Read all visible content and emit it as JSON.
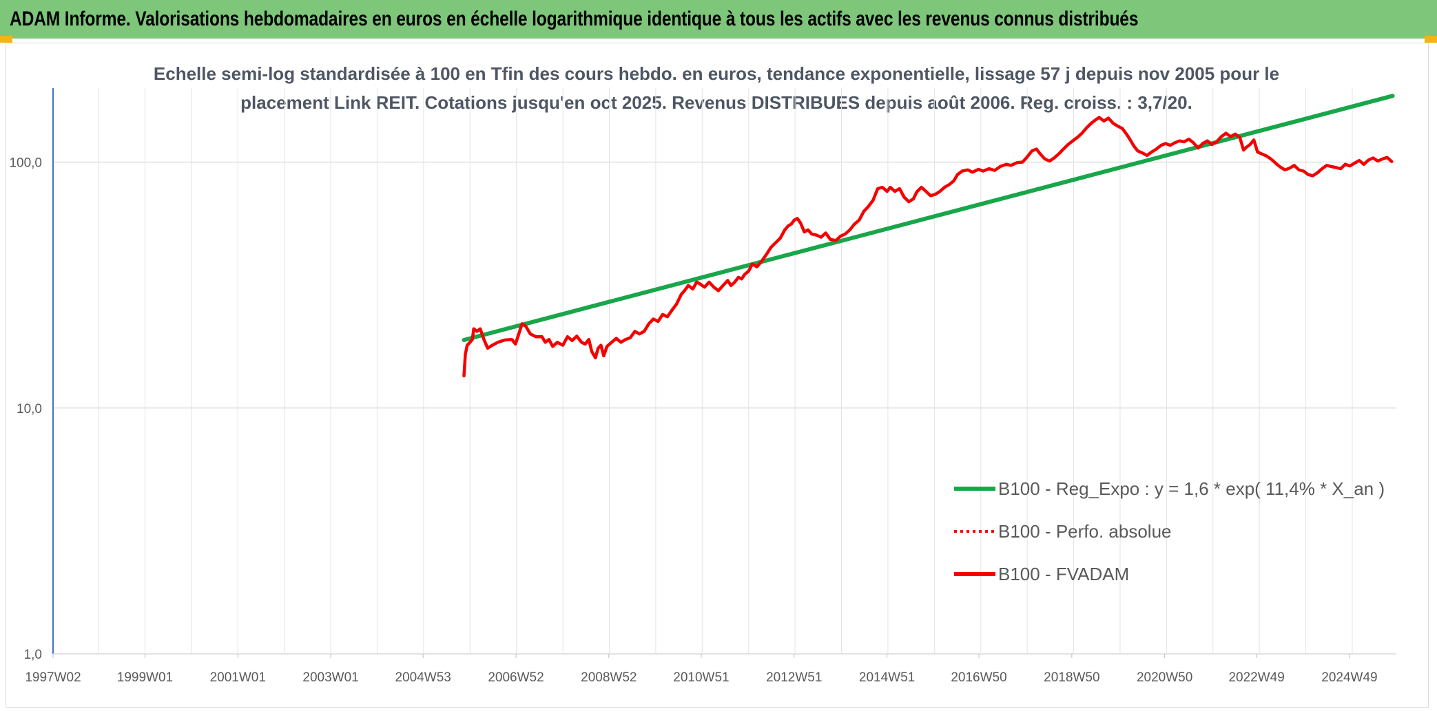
{
  "header": {
    "title": "ADAM Informe. Valorisations hebdomadaires en euros en échelle logarithmique identique à tous les actifs avec les revenus connus distribués"
  },
  "colors": {
    "header_bg": "#7dc67a",
    "corner_accent": "#f3b415",
    "trend": "#19a64a",
    "series": "#f50000",
    "grid": "#d9d9d9",
    "axis": "#4472c4"
  },
  "chart_data": {
    "type": "line",
    "title_lines": [
      "Echelle semi-log standardisée à 100 en Tfin des cours hebdo. en euros, tendance exponentielle, lissage 57 j depuis nov 2005 pour le",
      "placement Link REIT. Cotations jusqu'en oct 2025. Revenus DISTRIBUES depuis août 2006. Reg. croiss. : 3,7/20."
    ],
    "y_scale": "log",
    "ylim": [
      1,
      200
    ],
    "y_ticks": [
      {
        "value": 1,
        "label": "1,0"
      },
      {
        "value": 10,
        "label": "10,0"
      },
      {
        "value": 100,
        "label": "100,0"
      }
    ],
    "xlim": [
      1997.02,
      2025.95
    ],
    "x_ticks": [
      {
        "value": 1997.02,
        "label": "1997W02"
      },
      {
        "value": 1999.0,
        "label": "1999W01"
      },
      {
        "value": 2001.0,
        "label": "2001W01"
      },
      {
        "value": 2003.0,
        "label": "2003W01"
      },
      {
        "value": 2004.99,
        "label": "2004W53"
      },
      {
        "value": 2006.99,
        "label": "2006W52"
      },
      {
        "value": 2008.99,
        "label": "2008W52"
      },
      {
        "value": 2010.98,
        "label": "2010W51"
      },
      {
        "value": 2012.98,
        "label": "2012W51"
      },
      {
        "value": 2014.98,
        "label": "2014W51"
      },
      {
        "value": 2016.96,
        "label": "2016W50"
      },
      {
        "value": 2018.96,
        "label": "2018W50"
      },
      {
        "value": 2020.96,
        "label": "2020W50"
      },
      {
        "value": 2022.94,
        "label": "2022W49"
      },
      {
        "value": 2024.94,
        "label": "2024W49"
      }
    ],
    "grid": true,
    "legend_position": "bottom-right",
    "series": [
      {
        "name": "B100 - Reg_Expo : y = 1,6 * exp( 11,4% *  X_an )",
        "style": "solid",
        "color": "#19a64a",
        "points": [
          [
            2005.87,
            18.9
          ],
          [
            2025.87,
            186
          ]
        ]
      },
      {
        "name": "B100 - Perfo. absolue",
        "style": "dotted",
        "color": "#f50000",
        "points": []
      },
      {
        "name": "B100 - FVADAM",
        "style": "solid",
        "color": "#f50000",
        "points": [
          [
            2005.87,
            13.5
          ],
          [
            2005.9,
            16.5
          ],
          [
            2005.94,
            18.0
          ],
          [
            2006.0,
            18.5
          ],
          [
            2006.05,
            19.0
          ],
          [
            2006.08,
            21.0
          ],
          [
            2006.15,
            20.5
          ],
          [
            2006.22,
            21.0
          ],
          [
            2006.3,
            19.0
          ],
          [
            2006.38,
            17.5
          ],
          [
            2006.48,
            18.0
          ],
          [
            2006.6,
            18.5
          ],
          [
            2006.75,
            18.9
          ],
          [
            2006.9,
            19.0
          ],
          [
            2006.98,
            18.2
          ],
          [
            2007.05,
            20.0
          ],
          [
            2007.12,
            22.0
          ],
          [
            2007.2,
            21.5
          ],
          [
            2007.3,
            20.0
          ],
          [
            2007.42,
            19.5
          ],
          [
            2007.55,
            19.5
          ],
          [
            2007.62,
            18.5
          ],
          [
            2007.7,
            19.0
          ],
          [
            2007.78,
            17.8
          ],
          [
            2007.88,
            18.5
          ],
          [
            2008.0,
            18.0
          ],
          [
            2008.1,
            19.5
          ],
          [
            2008.2,
            18.8
          ],
          [
            2008.3,
            19.6
          ],
          [
            2008.4,
            18.5
          ],
          [
            2008.48,
            18.2
          ],
          [
            2008.56,
            19.0
          ],
          [
            2008.62,
            17.0
          ],
          [
            2008.7,
            16.0
          ],
          [
            2008.76,
            17.5
          ],
          [
            2008.82,
            18.0
          ],
          [
            2008.88,
            16.3
          ],
          [
            2008.95,
            17.8
          ],
          [
            2009.05,
            18.5
          ],
          [
            2009.15,
            19.2
          ],
          [
            2009.25,
            18.5
          ],
          [
            2009.35,
            19.0
          ],
          [
            2009.45,
            19.3
          ],
          [
            2009.55,
            20.5
          ],
          [
            2009.65,
            20.0
          ],
          [
            2009.75,
            20.5
          ],
          [
            2009.85,
            22.0
          ],
          [
            2009.95,
            23.0
          ],
          [
            2010.05,
            22.5
          ],
          [
            2010.15,
            24.0
          ],
          [
            2010.25,
            23.5
          ],
          [
            2010.35,
            25.0
          ],
          [
            2010.45,
            26.5
          ],
          [
            2010.55,
            29.0
          ],
          [
            2010.62,
            30.0
          ],
          [
            2010.7,
            31.5
          ],
          [
            2010.8,
            30.5
          ],
          [
            2010.88,
            32.5
          ],
          [
            2010.95,
            32.0
          ],
          [
            2011.05,
            31.0
          ],
          [
            2011.15,
            32.5
          ],
          [
            2011.25,
            31.0
          ],
          [
            2011.35,
            30.0
          ],
          [
            2011.45,
            31.5
          ],
          [
            2011.55,
            33.0
          ],
          [
            2011.62,
            31.5
          ],
          [
            2011.7,
            32.5
          ],
          [
            2011.78,
            34.0
          ],
          [
            2011.85,
            33.5
          ],
          [
            2011.92,
            35.0
          ],
          [
            2012.0,
            36.0
          ],
          [
            2012.08,
            38.5
          ],
          [
            2012.18,
            37.5
          ],
          [
            2012.28,
            39.5
          ],
          [
            2012.38,
            42.0
          ],
          [
            2012.48,
            45.0
          ],
          [
            2012.58,
            47.0
          ],
          [
            2012.68,
            49.0
          ],
          [
            2012.78,
            53.0
          ],
          [
            2012.85,
            55.0
          ],
          [
            2012.92,
            56.0
          ],
          [
            2012.98,
            58.0
          ],
          [
            2013.05,
            59.0
          ],
          [
            2013.12,
            56.5
          ],
          [
            2013.2,
            52.0
          ],
          [
            2013.28,
            53.0
          ],
          [
            2013.36,
            51.0
          ],
          [
            2013.46,
            50.5
          ],
          [
            2013.56,
            49.5
          ],
          [
            2013.66,
            51.5
          ],
          [
            2013.76,
            48.5
          ],
          [
            2013.88,
            48.0
          ],
          [
            2013.98,
            50.0
          ],
          [
            2014.08,
            51.0
          ],
          [
            2014.18,
            53.0
          ],
          [
            2014.28,
            56.0
          ],
          [
            2014.38,
            58.0
          ],
          [
            2014.48,
            63.0
          ],
          [
            2014.58,
            66.0
          ],
          [
            2014.68,
            70.0
          ],
          [
            2014.78,
            78.0
          ],
          [
            2014.88,
            79.0
          ],
          [
            2014.98,
            76.0
          ],
          [
            2015.05,
            79.0
          ],
          [
            2015.15,
            76.0
          ],
          [
            2015.25,
            78.0
          ],
          [
            2015.35,
            72.0
          ],
          [
            2015.45,
            69.0
          ],
          [
            2015.55,
            71.0
          ],
          [
            2015.62,
            75.5
          ],
          [
            2015.72,
            79.0
          ],
          [
            2015.82,
            76.0
          ],
          [
            2015.92,
            73.0
          ],
          [
            2016.02,
            74.0
          ],
          [
            2016.12,
            76.0
          ],
          [
            2016.22,
            79.0
          ],
          [
            2016.32,
            81.0
          ],
          [
            2016.42,
            84.0
          ],
          [
            2016.5,
            89.0
          ],
          [
            2016.6,
            92.0
          ],
          [
            2016.72,
            93.0
          ],
          [
            2016.82,
            91.0
          ],
          [
            2016.95,
            93.5
          ],
          [
            2017.05,
            92.0
          ],
          [
            2017.18,
            94.0
          ],
          [
            2017.3,
            92.5
          ],
          [
            2017.42,
            96.0
          ],
          [
            2017.55,
            98.0
          ],
          [
            2017.65,
            97.0
          ],
          [
            2017.78,
            99.5
          ],
          [
            2017.9,
            100.0
          ],
          [
            2018.0,
            105.0
          ],
          [
            2018.1,
            111.0
          ],
          [
            2018.2,
            113.0
          ],
          [
            2018.28,
            108.0
          ],
          [
            2018.38,
            103.0
          ],
          [
            2018.48,
            101.0
          ],
          [
            2018.58,
            104.0
          ],
          [
            2018.68,
            108.0
          ],
          [
            2018.78,
            113.0
          ],
          [
            2018.88,
            118.0
          ],
          [
            2018.98,
            122.0
          ],
          [
            2019.08,
            126.0
          ],
          [
            2019.18,
            131.0
          ],
          [
            2019.28,
            138.0
          ],
          [
            2019.38,
            144.0
          ],
          [
            2019.48,
            149.0
          ],
          [
            2019.55,
            152.0
          ],
          [
            2019.65,
            147.0
          ],
          [
            2019.75,
            151.0
          ],
          [
            2019.85,
            144.0
          ],
          [
            2019.95,
            140.0
          ],
          [
            2020.05,
            137.0
          ],
          [
            2020.15,
            129.0
          ],
          [
            2020.22,
            123.0
          ],
          [
            2020.3,
            116.0
          ],
          [
            2020.38,
            111.0
          ],
          [
            2020.48,
            109.0
          ],
          [
            2020.58,
            106.5
          ],
          [
            2020.68,
            110.0
          ],
          [
            2020.78,
            113.0
          ],
          [
            2020.88,
            117.0
          ],
          [
            2020.98,
            119.0
          ],
          [
            2021.08,
            117.0
          ],
          [
            2021.18,
            120.0
          ],
          [
            2021.28,
            122.0
          ],
          [
            2021.38,
            121.0
          ],
          [
            2021.48,
            124.0
          ],
          [
            2021.58,
            120.0
          ],
          [
            2021.68,
            114.0
          ],
          [
            2021.78,
            119.0
          ],
          [
            2021.88,
            122.0
          ],
          [
            2021.98,
            118.0
          ],
          [
            2022.08,
            121.0
          ],
          [
            2022.18,
            127.0
          ],
          [
            2022.28,
            131.0
          ],
          [
            2022.38,
            127.0
          ],
          [
            2022.48,
            130.0
          ],
          [
            2022.58,
            126.0
          ],
          [
            2022.66,
            112.0
          ],
          [
            2022.72,
            115.0
          ],
          [
            2022.8,
            118.0
          ],
          [
            2022.88,
            123.0
          ],
          [
            2022.96,
            110.0
          ],
          [
            2023.05,
            108.0
          ],
          [
            2023.15,
            106.0
          ],
          [
            2023.25,
            103.0
          ],
          [
            2023.35,
            99.0
          ],
          [
            2023.45,
            95.5
          ],
          [
            2023.55,
            93.0
          ],
          [
            2023.65,
            94.5
          ],
          [
            2023.75,
            97.0
          ],
          [
            2023.85,
            93.0
          ],
          [
            2023.95,
            92.0
          ],
          [
            2024.05,
            89.0
          ],
          [
            2024.15,
            88.0
          ],
          [
            2024.25,
            90.5
          ],
          [
            2024.35,
            94.0
          ],
          [
            2024.45,
            97.0
          ],
          [
            2024.55,
            96.0
          ],
          [
            2024.65,
            95.0
          ],
          [
            2024.75,
            94.0
          ],
          [
            2024.85,
            98.0
          ],
          [
            2024.95,
            96.5
          ],
          [
            2025.05,
            99.0
          ],
          [
            2025.15,
            101.5
          ],
          [
            2025.25,
            98.0
          ],
          [
            2025.35,
            102.0
          ],
          [
            2025.45,
            104.0
          ],
          [
            2025.55,
            101.0
          ],
          [
            2025.65,
            103.0
          ],
          [
            2025.75,
            104.5
          ],
          [
            2025.85,
            100.5
          ]
        ]
      }
    ]
  }
}
